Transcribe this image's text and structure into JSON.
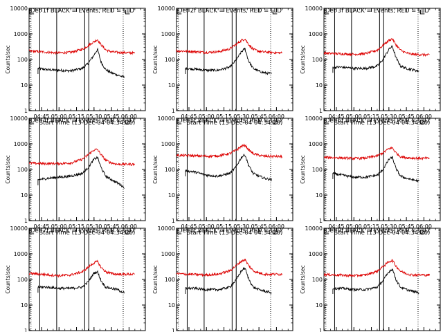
{
  "chart_data": {
    "type": "line",
    "y_scale": "log",
    "ylim": [
      1,
      10000
    ],
    "y_ticks": [
      1,
      10,
      100,
      1000,
      10000
    ],
    "y_tick_labels": [
      "1",
      "10",
      "100",
      "1000",
      "10000"
    ],
    "ylabel": "Counts/sec",
    "xlabel": "Start Time (13-Dec-04 04:34:20)",
    "x_tick_labels": [
      "04:45",
      "05:00",
      "05:15",
      "05:30",
      "05:45",
      "06:00"
    ],
    "grid": false,
    "colors": {
      "events": "#000000",
      "lld": "#dd0000",
      "axes": "#000000"
    },
    "panels": [
      {
        "title": "Det 1f BLACK = Events, RED = LLD",
        "series": [
          {
            "name": "Events",
            "color": "#000000",
            "x": [
              "04:42",
              "04:50",
              "05:00",
              "05:10",
              "05:20",
              "05:25",
              "05:30",
              "05:33",
              "05:36",
              "05:40",
              "05:45",
              "05:50",
              "05:56"
            ],
            "y": [
              45,
              40,
              38,
              36,
              45,
              70,
              150,
              250,
              80,
              40,
              30,
              25,
              20
            ]
          },
          {
            "name": "LLD",
            "color": "#dd0000",
            "x": [
              "04:30",
              "04:45",
              "05:00",
              "05:10",
              "05:20",
              "05:25",
              "05:30",
              "05:33",
              "05:36",
              "05:40",
              "05:45",
              "05:50",
              "06:05"
            ],
            "y": [
              220,
              200,
              180,
              190,
              250,
              350,
              500,
              600,
              380,
              240,
              200,
              190,
              180
            ]
          }
        ]
      },
      {
        "title": "Det 2f BLACK = Events, RED = LLD",
        "series": [
          {
            "name": "Events",
            "color": "#000000",
            "x": [
              "04:42",
              "04:50",
              "05:00",
              "05:10",
              "05:20",
              "05:25",
              "05:30",
              "05:33",
              "05:36",
              "05:40",
              "05:45",
              "05:50",
              "05:56"
            ],
            "y": [
              45,
              42,
              38,
              38,
              50,
              90,
              200,
              270,
              90,
              45,
              35,
              30,
              28
            ]
          },
          {
            "name": "LLD",
            "color": "#dd0000",
            "x": [
              "04:30",
              "04:45",
              "05:00",
              "05:10",
              "05:20",
              "05:25",
              "05:30",
              "05:33",
              "05:36",
              "05:40",
              "05:45",
              "05:50",
              "06:05"
            ],
            "y": [
              220,
              210,
              190,
              200,
              260,
              380,
              560,
              640,
              400,
              250,
              210,
              195,
              180
            ]
          }
        ]
      },
      {
        "title": "Det 3f BLACK = Events, RED = LLD",
        "series": [
          {
            "name": "Events",
            "color": "#000000",
            "x": [
              "04:42",
              "04:50",
              "05:00",
              "05:10",
              "05:20",
              "05:25",
              "05:30",
              "05:33",
              "05:36",
              "05:40",
              "05:45",
              "05:50",
              "05:56"
            ],
            "y": [
              50,
              50,
              45,
              45,
              55,
              100,
              250,
              330,
              120,
              55,
              45,
              40,
              35
            ]
          },
          {
            "name": "LLD",
            "color": "#dd0000",
            "x": [
              "04:30",
              "04:45",
              "05:00",
              "05:10",
              "05:20",
              "05:25",
              "05:30",
              "05:33",
              "05:36",
              "05:40",
              "05:45",
              "05:50",
              "06:05"
            ],
            "y": [
              180,
              170,
              160,
              170,
              230,
              360,
              560,
              650,
              380,
              230,
              180,
              160,
              150
            ]
          }
        ]
      },
      {
        "title": "Det 4f BLACK = Events, RED = LLD",
        "series": [
          {
            "name": "Events",
            "color": "#000000",
            "x": [
              "04:42",
              "04:50",
              "05:00",
              "05:10",
              "05:20",
              "05:25",
              "05:30",
              "05:33",
              "05:36",
              "05:40",
              "05:45",
              "05:50",
              "05:56"
            ],
            "y": [
              40,
              45,
              50,
              55,
              70,
              120,
              250,
              300,
              120,
              55,
              40,
              30,
              20
            ]
          },
          {
            "name": "LLD",
            "color": "#dd0000",
            "x": [
              "04:30",
              "04:45",
              "05:00",
              "05:10",
              "05:20",
              "05:25",
              "05:30",
              "05:33",
              "05:36",
              "05:40",
              "05:45",
              "05:50",
              "06:05"
            ],
            "y": [
              180,
              170,
              170,
              180,
              250,
              380,
              580,
              600,
              380,
              230,
              180,
              160,
              160
            ]
          }
        ]
      },
      {
        "title": "Det 5f BLACK = Events, RED = LLD",
        "series": [
          {
            "name": "Events",
            "color": "#000000",
            "x": [
              "04:42",
              "04:50",
              "05:00",
              "05:10",
              "05:20",
              "05:25",
              "05:30",
              "05:33",
              "05:36",
              "05:40",
              "05:45",
              "05:50",
              "05:56"
            ],
            "y": [
              90,
              80,
              60,
              55,
              70,
              120,
              300,
              380,
              150,
              70,
              55,
              45,
              40
            ]
          },
          {
            "name": "LLD",
            "color": "#dd0000",
            "x": [
              "04:30",
              "04:45",
              "05:00",
              "05:10",
              "05:20",
              "05:25",
              "05:30",
              "05:33",
              "05:36",
              "05:40",
              "05:45",
              "05:50",
              "06:05"
            ],
            "y": [
              360,
              350,
              330,
              340,
              420,
              550,
              800,
              900,
              600,
              420,
              360,
              330,
              320
            ]
          }
        ]
      },
      {
        "title": "Det 6f BLACK = Events, RED = LLD",
        "series": [
          {
            "name": "Events",
            "color": "#000000",
            "x": [
              "04:42",
              "04:50",
              "05:00",
              "05:10",
              "05:20",
              "05:25",
              "05:30",
              "05:33",
              "05:36",
              "05:40",
              "05:45",
              "05:50",
              "05:56"
            ],
            "y": [
              70,
              60,
              50,
              50,
              60,
              100,
              250,
              300,
              110,
              55,
              45,
              40,
              35
            ]
          },
          {
            "name": "LLD",
            "color": "#dd0000",
            "x": [
              "04:30",
              "04:45",
              "05:00",
              "05:10",
              "05:20",
              "05:25",
              "05:30",
              "05:33",
              "05:36",
              "05:40",
              "05:45",
              "05:50",
              "06:05"
            ],
            "y": [
              300,
              290,
              270,
              280,
              340,
              450,
              650,
              700,
              450,
              320,
              290,
              280,
              270
            ]
          }
        ]
      },
      {
        "title": "Det 7f BLACK = Events, RED = LLD",
        "series": [
          {
            "name": "Events",
            "color": "#000000",
            "x": [
              "04:42",
              "04:50",
              "05:00",
              "05:10",
              "05:20",
              "05:25",
              "05:30",
              "05:33",
              "05:36",
              "05:40",
              "05:45",
              "05:50",
              "05:56"
            ],
            "y": [
              50,
              50,
              45,
              45,
              50,
              80,
              180,
              200,
              90,
              50,
              45,
              40,
              30
            ]
          },
          {
            "name": "LLD",
            "color": "#dd0000",
            "x": [
              "04:30",
              "04:45",
              "05:00",
              "05:10",
              "05:20",
              "05:25",
              "05:30",
              "05:33",
              "05:36",
              "05:40",
              "05:45",
              "05:50",
              "06:05"
            ],
            "y": [
              180,
              160,
              140,
              150,
              200,
              300,
              450,
              500,
              300,
              200,
              170,
              160,
              160
            ]
          }
        ]
      },
      {
        "title": "Det 8f BLACK = Events, RED = LLD",
        "series": [
          {
            "name": "Events",
            "color": "#000000",
            "x": [
              "04:42",
              "04:50",
              "05:00",
              "05:10",
              "05:20",
              "05:25",
              "05:30",
              "05:33",
              "05:36",
              "05:40",
              "05:45",
              "05:50",
              "05:56"
            ],
            "y": [
              45,
              45,
              40,
              40,
              50,
              90,
              220,
              280,
              110,
              50,
              40,
              35,
              30
            ]
          },
          {
            "name": "LLD",
            "color": "#dd0000",
            "x": [
              "04:30",
              "04:45",
              "05:00",
              "05:10",
              "05:20",
              "05:25",
              "05:30",
              "05:33",
              "05:36",
              "05:40",
              "05:45",
              "05:50",
              "06:05"
            ],
            "y": [
              170,
              160,
              150,
              160,
              220,
              330,
              520,
              600,
              360,
              220,
              180,
              160,
              160
            ]
          }
        ]
      },
      {
        "title": "Det 9f BLACK = Events, RED = LLD",
        "series": [
          {
            "name": "Events",
            "color": "#000000",
            "x": [
              "04:42",
              "04:50",
              "05:00",
              "05:10",
              "05:20",
              "05:25",
              "05:30",
              "05:33",
              "05:36",
              "05:40",
              "05:45",
              "05:50",
              "05:56"
            ],
            "y": [
              45,
              45,
              40,
              40,
              50,
              90,
              200,
              260,
              100,
              50,
              40,
              35,
              30
            ]
          },
          {
            "name": "LLD",
            "color": "#dd0000",
            "x": [
              "04:30",
              "04:45",
              "05:00",
              "05:10",
              "05:20",
              "05:25",
              "05:30",
              "05:33",
              "05:36",
              "05:40",
              "05:45",
              "05:50",
              "06:05"
            ],
            "y": [
              160,
              150,
              140,
              150,
              210,
              320,
              500,
              560,
              340,
              210,
              170,
              150,
              150
            ]
          }
        ]
      }
    ]
  }
}
